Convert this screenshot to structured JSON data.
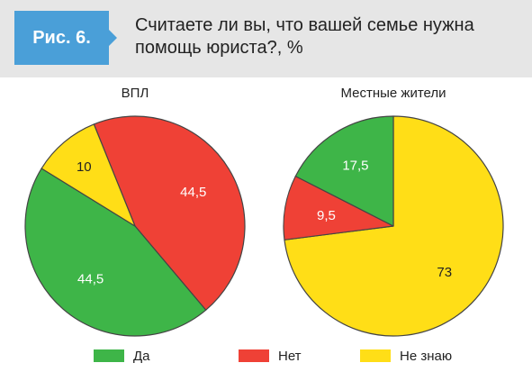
{
  "figure": {
    "badge": "Рис. 6.",
    "title": "Считаете ли вы, что вашей семье нужна помощь юриста?, %"
  },
  "colors": {
    "green": "#3eb548",
    "red": "#ef4136",
    "yellow": "#ffde17",
    "badge": "#4a9fd8",
    "header_band": "#e6e6e6"
  },
  "chart_data": [
    {
      "type": "pie",
      "title": "ВПЛ",
      "slices": [
        {
          "label": "Нет",
          "value": 44.5,
          "text": "44,5",
          "color": "red"
        },
        {
          "label": "Да",
          "value": 44.5,
          "text": "44,5",
          "color": "green"
        },
        {
          "label": "Не знаю",
          "value": 10,
          "text": "10",
          "color": "yellow"
        }
      ]
    },
    {
      "type": "pie",
      "title": "Местные жители",
      "slices": [
        {
          "label": "Не знаю",
          "value": 73,
          "text": "73",
          "color": "yellow"
        },
        {
          "label": "Нет",
          "value": 9.5,
          "text": "9,5",
          "color": "red"
        },
        {
          "label": "Да",
          "value": 17.5,
          "text": "17,5",
          "color": "green"
        }
      ]
    }
  ],
  "legend": [
    {
      "label": "Да",
      "color": "green"
    },
    {
      "label": "Нет",
      "color": "red"
    },
    {
      "label": "Не знаю",
      "color": "yellow"
    }
  ]
}
